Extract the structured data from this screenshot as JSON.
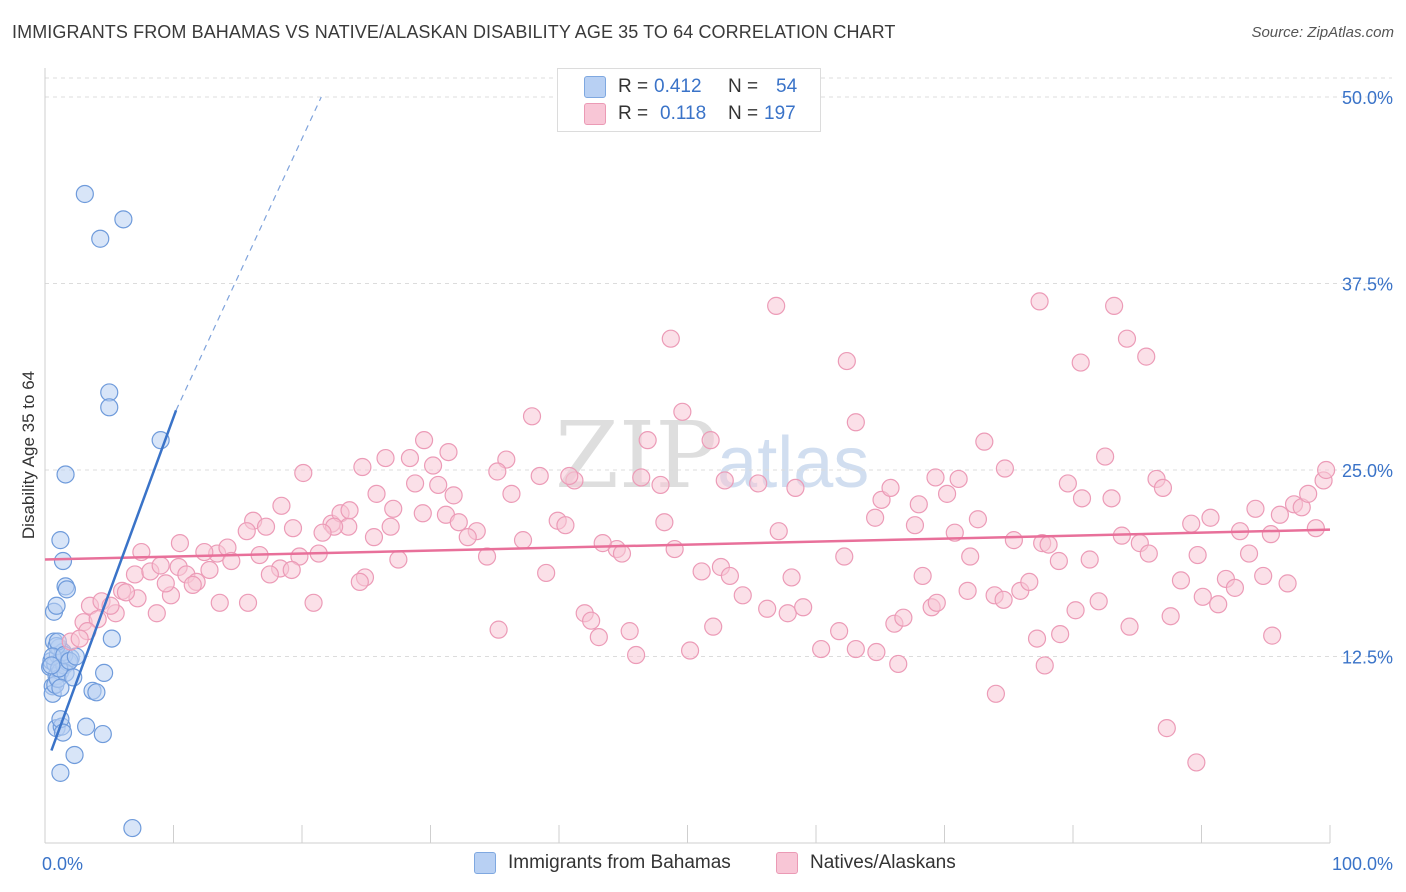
{
  "title": "IMMIGRANTS FROM BAHAMAS VS NATIVE/ALASKAN DISABILITY AGE 35 TO 64 CORRELATION CHART",
  "source": "Source: ZipAtlas.com",
  "watermark": {
    "zip": "ZIP",
    "atlas": "atlas"
  },
  "colors": {
    "blue": "#3a73c8",
    "blue_fill": "#b8d0f3",
    "pink": "#e8709a",
    "pink_fill": "#f8c6d6",
    "grid": "#dddddd"
  },
  "legend": {
    "rows": [
      {
        "r_label": "R =",
        "r_value": "0.412",
        "n_label": "N =",
        "n_value": "54"
      },
      {
        "r_label": "R =",
        "r_value": "0.118",
        "n_label": "N =",
        "n_value": "197"
      }
    ]
  },
  "bottom_legend": {
    "series1": "Immigrants from Bahamas",
    "series2": "Natives/Alaskans"
  },
  "chart_data": {
    "type": "scatter",
    "title": "IMMIGRANTS FROM BAHAMAS VS NATIVE/ALASKAN DISABILITY AGE 35 TO 64 CORRELATION CHART",
    "xlabel": "",
    "ylabel": "Disability Age 35 to 64",
    "xlim": [
      0,
      100
    ],
    "ylim": [
      0,
      50
    ],
    "x_tick_labels": [
      "0.0%",
      "100.0%"
    ],
    "y_ticks": [
      12.5,
      25.0,
      37.5,
      50.0
    ],
    "y_tick_labels": [
      "12.5%",
      "25.0%",
      "37.5%",
      "50.0%"
    ],
    "series": [
      {
        "name": "Immigrants from Bahamas",
        "r": 0.412,
        "n": 54,
        "trend": {
          "x0": 0.5,
          "y0": 6.2,
          "x1": 10.2,
          "y1": 29.0,
          "x_dash_end": 21.5,
          "y_dash_end": 50.0
        },
        "points": [
          [
            0.4,
            11.8
          ],
          [
            0.5,
            12.2
          ],
          [
            0.6,
            10.5
          ],
          [
            0.7,
            13.5
          ],
          [
            0.8,
            12.0
          ],
          [
            0.9,
            11.2
          ],
          [
            1.0,
            12.6
          ],
          [
            1.1,
            13.1
          ],
          [
            1.2,
            11.5
          ],
          [
            1.3,
            12.3
          ],
          [
            0.6,
            10.0
          ],
          [
            0.8,
            10.6
          ],
          [
            1.0,
            11.0
          ],
          [
            1.5,
            11.9
          ],
          [
            1.8,
            12.1
          ],
          [
            2.0,
            12.4
          ],
          [
            1.4,
            12.8
          ],
          [
            0.9,
            13.2
          ],
          [
            1.6,
            11.4
          ],
          [
            2.2,
            11.1
          ],
          [
            0.7,
            15.5
          ],
          [
            0.9,
            15.9
          ],
          [
            1.2,
            20.3
          ],
          [
            1.4,
            18.9
          ],
          [
            1.6,
            17.2
          ],
          [
            1.7,
            17.0
          ],
          [
            1.6,
            24.7
          ],
          [
            0.9,
            7.7
          ],
          [
            1.3,
            7.8
          ],
          [
            1.2,
            8.3
          ],
          [
            1.4,
            7.4
          ],
          [
            1.2,
            4.7
          ],
          [
            2.3,
            5.9
          ],
          [
            3.2,
            7.8
          ],
          [
            4.5,
            7.3
          ],
          [
            3.7,
            10.2
          ],
          [
            4.0,
            10.1
          ],
          [
            4.6,
            11.4
          ],
          [
            5.2,
            13.7
          ],
          [
            5.0,
            30.2
          ],
          [
            5.0,
            29.2
          ],
          [
            3.1,
            43.5
          ],
          [
            4.3,
            40.5
          ],
          [
            6.1,
            41.8
          ],
          [
            6.8,
            1.0
          ],
          [
            9.0,
            27.0
          ],
          [
            1.0,
            13.5
          ],
          [
            0.6,
            12.5
          ],
          [
            1.1,
            11.7
          ],
          [
            1.5,
            12.6
          ],
          [
            0.5,
            11.9
          ],
          [
            1.9,
            12.2
          ],
          [
            1.2,
            10.4
          ],
          [
            2.4,
            12.5
          ]
        ]
      },
      {
        "name": "Natives/Alaskans",
        "r": 0.118,
        "n": 197,
        "trend": {
          "x0": 0,
          "y0": 19.0,
          "x1": 100,
          "y1": 21.0
        },
        "points": [
          [
            2.0,
            13.5
          ],
          [
            3.0,
            14.8
          ],
          [
            3.5,
            15.9
          ],
          [
            4.4,
            16.2
          ],
          [
            5.5,
            15.4
          ],
          [
            6.0,
            16.9
          ],
          [
            7.0,
            18.0
          ],
          [
            7.5,
            19.5
          ],
          [
            8.2,
            18.2
          ],
          [
            9.0,
            18.6
          ],
          [
            9.8,
            16.6
          ],
          [
            10.4,
            18.5
          ],
          [
            11.0,
            18.0
          ],
          [
            11.8,
            17.5
          ],
          [
            12.8,
            18.3
          ],
          [
            13.4,
            19.4
          ],
          [
            14.2,
            19.8
          ],
          [
            15.8,
            16.1
          ],
          [
            16.2,
            21.6
          ],
          [
            17.2,
            21.2
          ],
          [
            18.3,
            18.4
          ],
          [
            19.3,
            21.1
          ],
          [
            20.1,
            24.8
          ],
          [
            21.3,
            19.4
          ],
          [
            22.3,
            21.4
          ],
          [
            23.0,
            22.1
          ],
          [
            23.6,
            21.2
          ],
          [
            24.7,
            25.2
          ],
          [
            24.9,
            17.8
          ],
          [
            25.8,
            23.4
          ],
          [
            26.5,
            25.8
          ],
          [
            27.5,
            19.0
          ],
          [
            28.4,
            25.8
          ],
          [
            28.8,
            24.1
          ],
          [
            29.5,
            27.0
          ],
          [
            30.2,
            25.3
          ],
          [
            30.6,
            24.0
          ],
          [
            31.2,
            22.0
          ],
          [
            31.8,
            23.3
          ],
          [
            32.2,
            21.5
          ],
          [
            33.6,
            20.9
          ],
          [
            34.4,
            19.2
          ],
          [
            35.3,
            14.3
          ],
          [
            36.3,
            23.4
          ],
          [
            37.2,
            20.3
          ],
          [
            38.5,
            24.6
          ],
          [
            39.0,
            18.1
          ],
          [
            39.9,
            21.6
          ],
          [
            40.5,
            21.3
          ],
          [
            41.2,
            24.3
          ],
          [
            42.0,
            15.4
          ],
          [
            42.5,
            14.9
          ],
          [
            43.1,
            13.8
          ],
          [
            44.5,
            19.7
          ],
          [
            45.5,
            14.2
          ],
          [
            46.0,
            12.6
          ],
          [
            46.4,
            24.5
          ],
          [
            46.9,
            27.0
          ],
          [
            47.9,
            24.0
          ],
          [
            48.2,
            21.5
          ],
          [
            49.0,
            19.7
          ],
          [
            50.2,
            12.9
          ],
          [
            51.1,
            18.2
          ],
          [
            52.0,
            14.5
          ],
          [
            52.6,
            18.5
          ],
          [
            53.3,
            17.9
          ],
          [
            54.3,
            16.6
          ],
          [
            55.5,
            24.1
          ],
          [
            56.2,
            15.7
          ],
          [
            57.1,
            20.9
          ],
          [
            57.8,
            15.4
          ],
          [
            58.1,
            17.8
          ],
          [
            59.0,
            15.8
          ],
          [
            60.4,
            13.0
          ],
          [
            61.8,
            14.2
          ],
          [
            62.2,
            19.2
          ],
          [
            63.1,
            13.0
          ],
          [
            64.6,
            21.8
          ],
          [
            65.1,
            23.0
          ],
          [
            66.1,
            14.7
          ],
          [
            66.8,
            15.1
          ],
          [
            67.7,
            21.3
          ],
          [
            68.3,
            17.9
          ],
          [
            69.0,
            15.8
          ],
          [
            69.4,
            16.1
          ],
          [
            70.2,
            23.4
          ],
          [
            71.1,
            24.4
          ],
          [
            71.8,
            16.9
          ],
          [
            72.0,
            19.2
          ],
          [
            72.6,
            21.7
          ],
          [
            73.1,
            26.9
          ],
          [
            73.9,
            16.6
          ],
          [
            74.6,
            16.3
          ],
          [
            75.4,
            20.3
          ],
          [
            75.9,
            16.9
          ],
          [
            76.6,
            17.5
          ],
          [
            77.2,
            13.7
          ],
          [
            77.6,
            20.1
          ],
          [
            78.1,
            20.0
          ],
          [
            78.9,
            18.9
          ],
          [
            79.6,
            24.1
          ],
          [
            80.2,
            15.6
          ],
          [
            81.3,
            19.0
          ],
          [
            82.0,
            16.2
          ],
          [
            82.5,
            25.9
          ],
          [
            83.0,
            23.1
          ],
          [
            83.8,
            20.6
          ],
          [
            84.4,
            14.5
          ],
          [
            85.2,
            20.1
          ],
          [
            85.9,
            19.4
          ],
          [
            86.5,
            24.4
          ],
          [
            87.0,
            23.8
          ],
          [
            87.6,
            15.2
          ],
          [
            88.4,
            17.6
          ],
          [
            89.2,
            21.4
          ],
          [
            89.7,
            19.3
          ],
          [
            90.1,
            16.5
          ],
          [
            90.7,
            21.8
          ],
          [
            91.3,
            16.0
          ],
          [
            91.9,
            17.7
          ],
          [
            92.6,
            17.1
          ],
          [
            93.0,
            20.9
          ],
          [
            93.7,
            19.4
          ],
          [
            94.2,
            22.4
          ],
          [
            94.8,
            17.9
          ],
          [
            95.4,
            20.7
          ],
          [
            96.1,
            22.0
          ],
          [
            96.7,
            17.4
          ],
          [
            97.2,
            22.7
          ],
          [
            97.8,
            22.5
          ],
          [
            98.3,
            23.4
          ],
          [
            98.9,
            21.1
          ],
          [
            99.5,
            24.3
          ],
          [
            99.7,
            25.0
          ],
          [
            64.7,
            12.8
          ],
          [
            66.4,
            12.0
          ],
          [
            68.0,
            22.7
          ],
          [
            70.8,
            20.8
          ],
          [
            74.0,
            10.0
          ],
          [
            77.8,
            11.9
          ],
          [
            79.0,
            14.0
          ],
          [
            80.7,
            23.1
          ],
          [
            80.6,
            32.2
          ],
          [
            83.2,
            36.0
          ],
          [
            84.2,
            33.8
          ],
          [
            85.7,
            32.6
          ],
          [
            87.3,
            7.7
          ],
          [
            77.4,
            36.3
          ],
          [
            74.7,
            25.1
          ],
          [
            69.3,
            24.5
          ],
          [
            65.8,
            23.8
          ],
          [
            62.4,
            32.3
          ],
          [
            63.1,
            28.2
          ],
          [
            58.4,
            23.8
          ],
          [
            56.9,
            36.0
          ],
          [
            52.9,
            24.3
          ],
          [
            51.8,
            27.0
          ],
          [
            49.6,
            28.9
          ],
          [
            48.7,
            33.8
          ],
          [
            44.9,
            19.4
          ],
          [
            43.4,
            20.1
          ],
          [
            40.8,
            24.6
          ],
          [
            37.9,
            28.6
          ],
          [
            35.9,
            25.7
          ],
          [
            35.2,
            24.9
          ],
          [
            32.9,
            20.5
          ],
          [
            31.4,
            26.2
          ],
          [
            29.4,
            22.1
          ],
          [
            27.1,
            22.4
          ],
          [
            26.9,
            21.2
          ],
          [
            25.6,
            20.5
          ],
          [
            24.5,
            17.5
          ],
          [
            23.7,
            22.3
          ],
          [
            22.5,
            21.2
          ],
          [
            21.6,
            20.8
          ],
          [
            20.9,
            16.1
          ],
          [
            19.8,
            19.2
          ],
          [
            19.2,
            18.3
          ],
          [
            18.4,
            22.6
          ],
          [
            17.5,
            18.0
          ],
          [
            16.7,
            19.3
          ],
          [
            15.7,
            20.9
          ],
          [
            14.5,
            18.9
          ],
          [
            13.6,
            16.1
          ],
          [
            12.4,
            19.5
          ],
          [
            11.5,
            17.3
          ],
          [
            10.5,
            20.1
          ],
          [
            9.4,
            17.4
          ],
          [
            8.7,
            15.4
          ],
          [
            7.2,
            16.4
          ],
          [
            6.3,
            16.8
          ],
          [
            5.1,
            15.9
          ],
          [
            4.1,
            15.0
          ],
          [
            3.3,
            14.2
          ],
          [
            2.7,
            13.7
          ],
          [
            89.6,
            5.4
          ],
          [
            95.5,
            13.9
          ]
        ]
      }
    ]
  }
}
